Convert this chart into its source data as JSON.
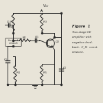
{
  "bg_color": "#e8e4d8",
  "text_color": "#2a2a2a",
  "line_color": "#2a2a2a",
  "figure_label": "Figure  1",
  "caption_lines": [
    "Two-stage CE",
    "amplifier with",
    "negative feed-",
    "back.  C_f1  const.",
    "network."
  ],
  "vcc_label": "V_CC",
  "figsize": [
    1.5,
    1.5
  ],
  "dpi": 100
}
